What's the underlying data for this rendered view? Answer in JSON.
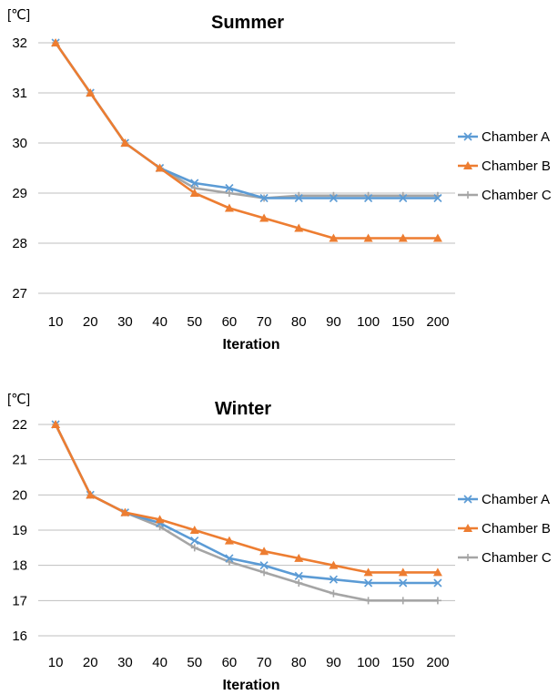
{
  "chart_data": [
    {
      "type": "line",
      "title": "Summer",
      "unit_label": "[℃]",
      "xlabel": "Iteration",
      "ylabel": "",
      "categories": [
        "10",
        "20",
        "30",
        "40",
        "50",
        "60",
        "70",
        "80",
        "90",
        "100",
        "150",
        "200"
      ],
      "ylim": [
        27,
        32
      ],
      "yticks": [
        "27",
        "28",
        "29",
        "30",
        "31",
        "32"
      ],
      "grid": true,
      "legend_position": "right",
      "series": [
        {
          "name": "Chamber A",
          "color": "#5b9bd5",
          "marker": "x",
          "values": [
            32.0,
            31.0,
            30.0,
            29.5,
            29.2,
            29.1,
            28.9,
            28.9,
            28.9,
            28.9,
            28.9,
            28.9
          ]
        },
        {
          "name": "Chamber B",
          "color": "#ed7d31",
          "marker": "triangle",
          "values": [
            32.0,
            31.0,
            30.0,
            29.5,
            29.0,
            28.7,
            28.5,
            28.3,
            28.1,
            28.1,
            28.1,
            28.1
          ]
        },
        {
          "name": "Chamber C",
          "color": "#a5a5a5",
          "marker": "plus",
          "values": [
            32.0,
            31.0,
            30.0,
            29.5,
            29.1,
            29.0,
            28.9,
            28.95,
            28.95,
            28.95,
            28.95,
            28.95
          ]
        }
      ]
    },
    {
      "type": "line",
      "title": "Winter",
      "unit_label": "[℃]",
      "xlabel": "Iteration",
      "ylabel": "",
      "categories": [
        "10",
        "20",
        "30",
        "40",
        "50",
        "60",
        "70",
        "80",
        "90",
        "100",
        "150",
        "200"
      ],
      "ylim": [
        16,
        22
      ],
      "yticks": [
        "16",
        "17",
        "18",
        "19",
        "20",
        "21",
        "22"
      ],
      "grid": true,
      "legend_position": "right",
      "series": [
        {
          "name": "Chamber A",
          "color": "#5b9bd5",
          "marker": "x",
          "values": [
            22.0,
            20.0,
            19.5,
            19.2,
            18.7,
            18.2,
            18.0,
            17.7,
            17.6,
            17.5,
            17.5,
            17.5
          ]
        },
        {
          "name": "Chamber B",
          "color": "#ed7d31",
          "marker": "triangle",
          "values": [
            22.0,
            20.0,
            19.5,
            19.3,
            19.0,
            18.7,
            18.4,
            18.2,
            18.0,
            17.8,
            17.8,
            17.8
          ]
        },
        {
          "name": "Chamber C",
          "color": "#a5a5a5",
          "marker": "plus",
          "values": [
            22.0,
            20.0,
            19.5,
            19.1,
            18.5,
            18.1,
            17.8,
            17.5,
            17.2,
            17.0,
            17.0,
            17.0
          ]
        }
      ]
    }
  ]
}
